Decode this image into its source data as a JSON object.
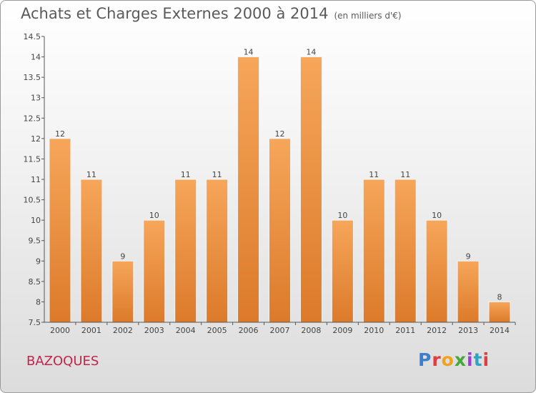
{
  "header": {
    "title": "Achats et Charges Externes 2000 à 2014",
    "unit": "(en milliers d'€)"
  },
  "footer": {
    "place": "BAZOQUES",
    "logo_letters": [
      {
        "ch": "P",
        "color": "#3a7fd0"
      },
      {
        "ch": "r",
        "color": "#e23c3c"
      },
      {
        "ch": "o",
        "color": "#f0a21a"
      },
      {
        "ch": "x",
        "color": "#46a83a"
      },
      {
        "ch": "i",
        "color": "#9b3dd0"
      },
      {
        "ch": "t",
        "color": "#2aa6c4"
      },
      {
        "ch": "i",
        "color": "#e23c3c"
      }
    ]
  },
  "colors": {
    "bar_top": "#f6a65a",
    "bar_bottom": "#dc7a2a",
    "axis": "#555555"
  },
  "chart_data": {
    "type": "bar",
    "title": "Achats et Charges Externes 2000 à 2014",
    "subtitle": "(en milliers d'€)",
    "categories": [
      "2000",
      "2001",
      "2002",
      "2003",
      "2004",
      "2005",
      "2006",
      "2007",
      "2008",
      "2009",
      "2010",
      "2011",
      "2012",
      "2013",
      "2014"
    ],
    "values": [
      12,
      11,
      9,
      10,
      11,
      11,
      14,
      12,
      14,
      10,
      11,
      11,
      10,
      9,
      8
    ],
    "ylim": [
      7.5,
      14.5
    ],
    "yticks": [
      "7.5",
      "8",
      "8.5",
      "9",
      "9.5",
      "10",
      "10.5",
      "11",
      "11.5",
      "12",
      "12.5",
      "13",
      "13.5",
      "14",
      "14.5"
    ],
    "data_labels": true,
    "grid": false,
    "legend": "none"
  }
}
